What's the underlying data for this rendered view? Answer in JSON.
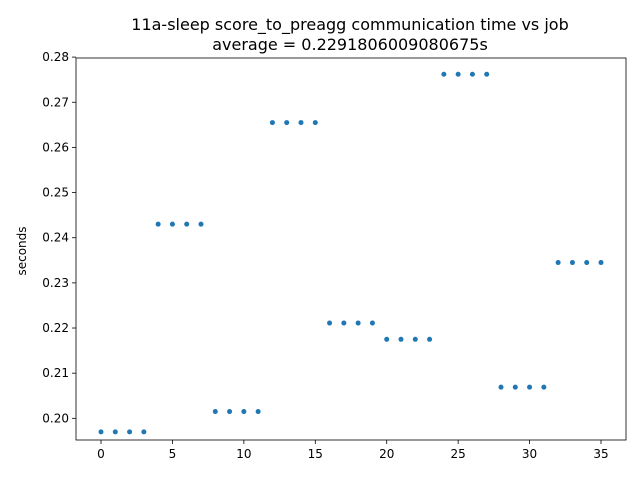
{
  "chart_data": {
    "type": "scatter",
    "title": "11a-sleep score_to_preagg communication time vs job",
    "subtitle": "average = 0.2291806009080675s",
    "xlabel": "",
    "ylabel": "seconds",
    "xlim": [
      -1.75,
      36.75
    ],
    "ylim": [
      0.1952,
      0.2798
    ],
    "xticks": [
      0,
      5,
      10,
      15,
      20,
      25,
      30,
      35
    ],
    "xtick_labels": [
      "0",
      "5",
      "10",
      "15",
      "20",
      "25",
      "30",
      "35"
    ],
    "yticks": [
      0.2,
      0.21,
      0.22,
      0.23,
      0.24,
      0.25,
      0.26,
      0.27,
      0.28
    ],
    "ytick_labels": [
      "0.20",
      "0.21",
      "0.22",
      "0.23",
      "0.24",
      "0.25",
      "0.26",
      "0.27",
      "0.28"
    ],
    "grid": false,
    "legend": "none",
    "marker_color": "#1f77b4",
    "x": [
      0,
      1,
      2,
      3,
      4,
      5,
      6,
      7,
      8,
      9,
      10,
      11,
      12,
      13,
      14,
      15,
      16,
      17,
      18,
      19,
      20,
      21,
      22,
      23,
      24,
      25,
      26,
      27,
      28,
      29,
      30,
      31,
      32,
      33,
      34,
      35
    ],
    "y": [
      0.197,
      0.197,
      0.197,
      0.197,
      0.243,
      0.243,
      0.243,
      0.243,
      0.2015,
      0.2015,
      0.2015,
      0.2015,
      0.2655,
      0.2655,
      0.2655,
      0.2655,
      0.2211,
      0.2211,
      0.2211,
      0.2211,
      0.2175,
      0.2175,
      0.2175,
      0.2175,
      0.2762,
      0.2762,
      0.2762,
      0.2762,
      0.2069,
      0.2069,
      0.2069,
      0.2069,
      0.2345,
      0.2345,
      0.2345,
      0.2345
    ]
  }
}
